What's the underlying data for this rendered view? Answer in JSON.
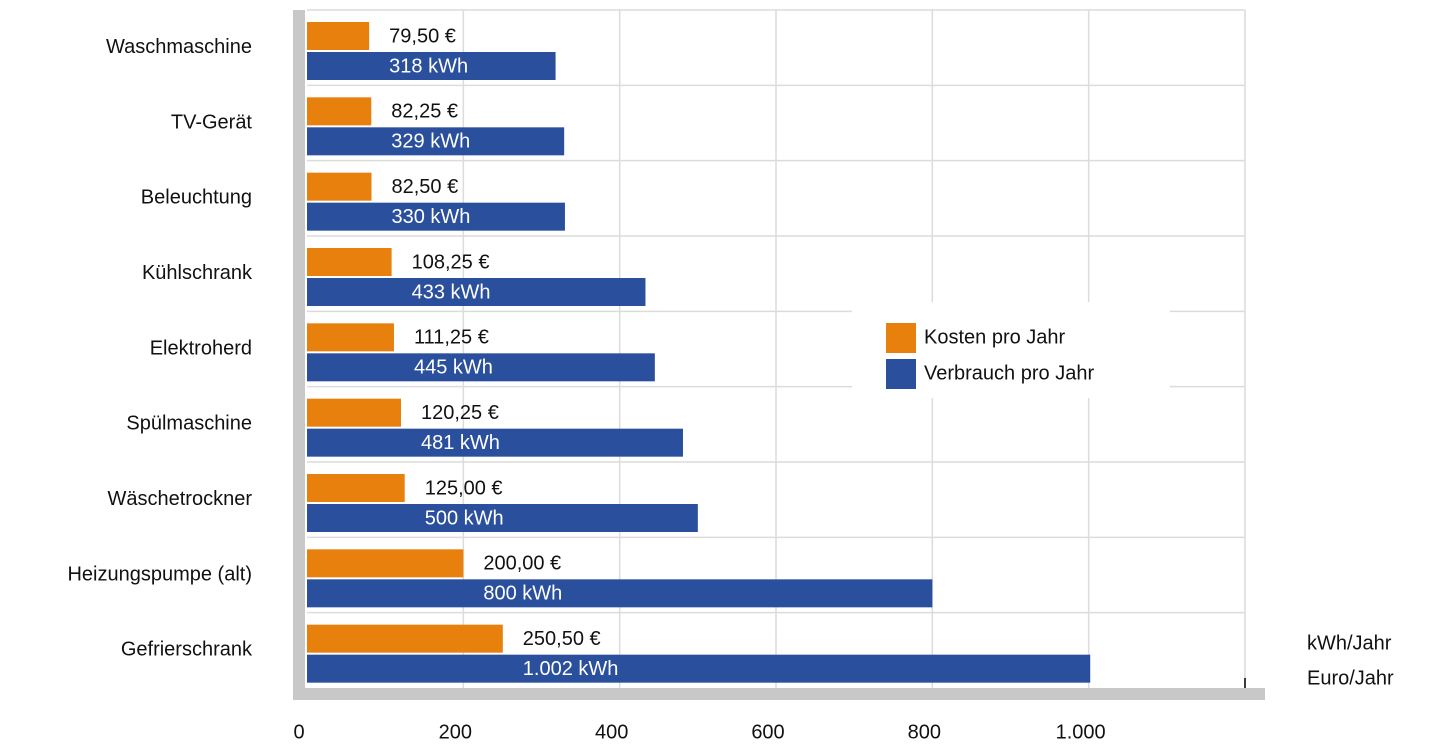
{
  "chart_data": {
    "type": "bar",
    "orientation": "horizontal",
    "categories": [
      "Waschmaschine",
      "TV-Gerät",
      "Beleuchtung",
      "Kühlschrank",
      "Elektroherd",
      "Spülmaschine",
      "Wäschetrockner",
      "Heizungspumpe (alt)",
      "Gefrierschrank"
    ],
    "series": [
      {
        "name": "Kosten pro Jahr",
        "color": "#e8800e",
        "values": [
          79.5,
          82.25,
          82.5,
          108.25,
          111.25,
          120.25,
          125,
          200,
          250.5
        ],
        "value_labels": [
          "79,50 €",
          "82,25 €",
          "82,50 €",
          "108,25 €",
          "111,25 €",
          "120,25 €",
          "125,00 €",
          "200,00 €",
          "250,50 €"
        ]
      },
      {
        "name": "Verbrauch pro Jahr",
        "color": "#2a4f9c",
        "values": [
          318,
          329,
          330,
          433,
          445,
          481,
          500,
          800,
          1002
        ],
        "value_labels": [
          "318 kWh",
          "329 kWh",
          "330 kWh",
          "433 kWh",
          "445 kWh",
          "481 kWh",
          "500 kWh",
          "800 kWh",
          "1.002 kWh"
        ]
      }
    ],
    "axis_labels": [
      "kWh/Jahr",
      "Euro/Jahr"
    ],
    "xlim": [
      0,
      1200
    ],
    "xticks": [
      0,
      200,
      400,
      600,
      800,
      {
        "value": 1000,
        "label": "1.000"
      }
    ],
    "grid": true,
    "legend": "center right"
  }
}
